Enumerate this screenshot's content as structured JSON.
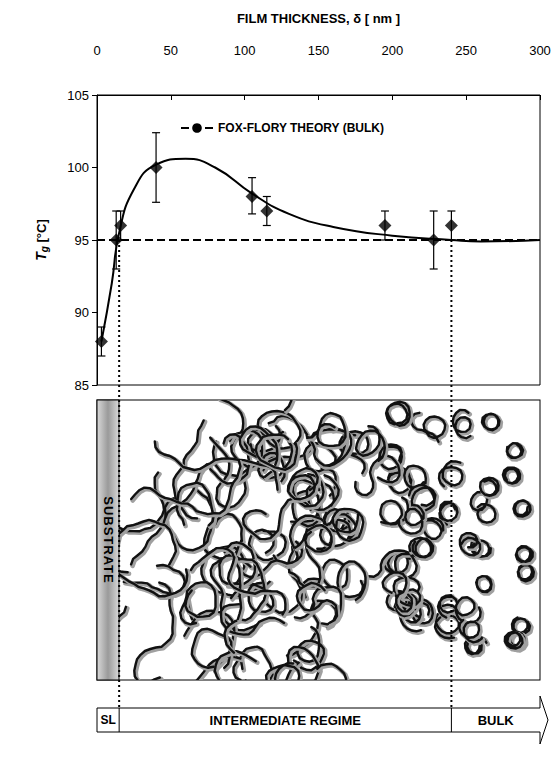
{
  "chart_data": {
    "type": "scatter",
    "xlabel": "FILM THICKNESS, δ [ nm ]",
    "ylabel": "Tg [°C]",
    "xlim": [
      0,
      300
    ],
    "xticks": [
      0,
      50,
      100,
      150,
      200,
      250,
      300
    ],
    "ylim": [
      85,
      105
    ],
    "yticks": [
      85,
      90,
      95,
      100,
      105
    ],
    "grid": false,
    "legend": "top",
    "regime_boundaries": [
      15,
      240
    ],
    "series": [
      {
        "name": "FOX-FLORY THEORY (BULK)",
        "type": "line",
        "line_style": "dashed",
        "color": "#000000",
        "x": [
          0,
          300
        ],
        "values": [
          95,
          95
        ]
      },
      {
        "type": "scatter",
        "marker": "diamond",
        "color": "#000000",
        "x": [
          3,
          13,
          16,
          40,
          105,
          115,
          195,
          228,
          240
        ],
        "values": [
          88,
          95,
          96,
          100,
          98,
          97,
          96,
          95,
          96
        ],
        "error_low": [
          87,
          93,
          95,
          97.6,
          96.8,
          96,
          95,
          93,
          95
        ],
        "error_high": [
          89,
          97,
          97,
          102.4,
          99.3,
          98,
          97,
          97,
          97
        ]
      },
      {
        "type": "line",
        "line_style": "solid",
        "color": "#000000",
        "x": [
          3,
          10,
          15,
          25,
          40,
          60,
          80,
          105,
          130,
          160,
          200,
          240,
          260,
          300
        ],
        "values": [
          88,
          92,
          95.5,
          98.5,
          100.2,
          100.6,
          100,
          98.2,
          96.8,
          95.9,
          95.3,
          95,
          94.9,
          95
        ]
      }
    ]
  },
  "diagram": {
    "substrate_label": "SUBSTRATE",
    "regimes": [
      "SL",
      "INTERMEDIATE REGIME",
      "BULK"
    ]
  }
}
